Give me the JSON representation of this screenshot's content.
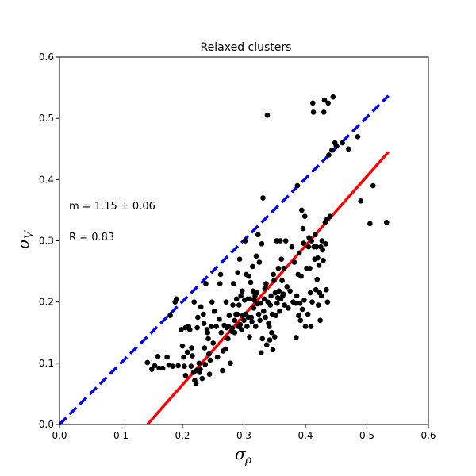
{
  "chart_data": {
    "type": "scatter",
    "title": "Relaxed clusters",
    "xlabel_symbol": "σ",
    "xlabel_subscript": "ρ",
    "ylabel_symbol": "σ",
    "ylabel_subscript": "V",
    "xlim": [
      0.0,
      0.6
    ],
    "ylim": [
      0.0,
      0.6
    ],
    "xticks": [
      "0.0",
      "0.1",
      "0.2",
      "0.3",
      "0.4",
      "0.5",
      "0.6"
    ],
    "yticks": [
      "0.0",
      "0.1",
      "0.2",
      "0.3",
      "0.4",
      "0.5",
      "0.6"
    ],
    "grid": false,
    "annotations": [
      "m = 1.15 ± 0.06",
      "R = 0.83"
    ],
    "colors": {
      "points": "#000000",
      "fit": "#ff0000",
      "one_to_one": "#0000ff"
    },
    "lines": [
      {
        "style": "dashed",
        "color": "#0000ff",
        "x": [
          0.0,
          0.535
        ],
        "y": [
          0.0,
          0.537
        ]
      },
      {
        "style": "solid",
        "color": "#ff0000",
        "x": [
          0.143,
          0.535
        ],
        "y": [
          0.0,
          0.445
        ]
      }
    ],
    "points": [
      [
        0.143,
        0.101
      ],
      [
        0.15,
        0.09
      ],
      [
        0.155,
        0.096
      ],
      [
        0.16,
        0.111
      ],
      [
        0.162,
        0.092
      ],
      [
        0.168,
        0.092
      ],
      [
        0.175,
        0.11
      ],
      [
        0.178,
        0.097
      ],
      [
        0.18,
        0.178
      ],
      [
        0.184,
        0.095
      ],
      [
        0.188,
        0.2
      ],
      [
        0.19,
        0.205
      ],
      [
        0.193,
        0.096
      ],
      [
        0.198,
        0.155
      ],
      [
        0.2,
        0.128
      ],
      [
        0.202,
        0.11
      ],
      [
        0.203,
        0.095
      ],
      [
        0.205,
        0.08
      ],
      [
        0.205,
        0.158
      ],
      [
        0.208,
        0.118
      ],
      [
        0.21,
        0.16
      ],
      [
        0.212,
        0.155
      ],
      [
        0.214,
        0.095
      ],
      [
        0.215,
        0.125
      ],
      [
        0.216,
        0.112
      ],
      [
        0.218,
        0.085
      ],
      [
        0.219,
        0.2
      ],
      [
        0.22,
        0.072
      ],
      [
        0.222,
        0.067
      ],
      [
        0.223,
        0.088
      ],
      [
        0.224,
        0.158
      ],
      [
        0.225,
        0.175
      ],
      [
        0.227,
        0.1
      ],
      [
        0.228,
        0.085
      ],
      [
        0.229,
        0.09
      ],
      [
        0.23,
        0.192
      ],
      [
        0.232,
        0.075
      ],
      [
        0.234,
        0.18
      ],
      [
        0.235,
        0.165
      ],
      [
        0.236,
        0.125
      ],
      [
        0.237,
        0.098
      ],
      [
        0.238,
        0.23
      ],
      [
        0.24,
        0.155
      ],
      [
        0.241,
        0.15
      ],
      [
        0.242,
        0.14
      ],
      [
        0.243,
        0.115
      ],
      [
        0.244,
        0.082
      ],
      [
        0.245,
        0.105
      ],
      [
        0.247,
        0.16
      ],
      [
        0.248,
        0.2
      ],
      [
        0.25,
        0.133
      ],
      [
        0.252,
        0.185
      ],
      [
        0.255,
        0.16
      ],
      [
        0.257,
        0.11
      ],
      [
        0.26,
        0.172
      ],
      [
        0.261,
        0.23
      ],
      [
        0.262,
        0.245
      ],
      [
        0.263,
        0.15
      ],
      [
        0.265,
        0.088
      ],
      [
        0.266,
        0.12
      ],
      [
        0.268,
        0.162
      ],
      [
        0.27,
        0.123
      ],
      [
        0.271,
        0.2
      ],
      [
        0.272,
        0.158
      ],
      [
        0.274,
        0.14
      ],
      [
        0.275,
        0.16
      ],
      [
        0.276,
        0.178
      ],
      [
        0.278,
        0.1
      ],
      [
        0.28,
        0.152
      ],
      [
        0.281,
        0.157
      ],
      [
        0.282,
        0.195
      ],
      [
        0.283,
        0.23
      ],
      [
        0.285,
        0.17
      ],
      [
        0.285,
        0.15
      ],
      [
        0.287,
        0.18
      ],
      [
        0.288,
        0.205
      ],
      [
        0.289,
        0.18
      ],
      [
        0.29,
        0.248
      ],
      [
        0.291,
        0.16
      ],
      [
        0.292,
        0.195
      ],
      [
        0.293,
        0.27
      ],
      [
        0.294,
        0.163
      ],
      [
        0.295,
        0.21
      ],
      [
        0.296,
        0.155
      ],
      [
        0.297,
        0.218
      ],
      [
        0.298,
        0.178
      ],
      [
        0.3,
        0.17
      ],
      [
        0.301,
        0.203
      ],
      [
        0.302,
        0.3
      ],
      [
        0.303,
        0.18
      ],
      [
        0.304,
        0.245
      ],
      [
        0.305,
        0.16
      ],
      [
        0.306,
        0.205
      ],
      [
        0.307,
        0.175
      ],
      [
        0.308,
        0.242
      ],
      [
        0.309,
        0.143
      ],
      [
        0.31,
        0.205
      ],
      [
        0.311,
        0.232
      ],
      [
        0.312,
        0.175
      ],
      [
        0.313,
        0.168
      ],
      [
        0.314,
        0.258
      ],
      [
        0.315,
        0.218
      ],
      [
        0.316,
        0.19
      ],
      [
        0.317,
        0.203
      ],
      [
        0.318,
        0.21
      ],
      [
        0.319,
        0.16
      ],
      [
        0.32,
        0.275
      ],
      [
        0.321,
        0.215
      ],
      [
        0.322,
        0.197
      ],
      [
        0.323,
        0.31
      ],
      [
        0.324,
        0.18
      ],
      [
        0.325,
        0.265
      ],
      [
        0.326,
        0.17
      ],
      [
        0.327,
        0.198
      ],
      [
        0.328,
        0.117
      ],
      [
        0.329,
        0.295
      ],
      [
        0.33,
        0.14
      ],
      [
        0.331,
        0.37
      ],
      [
        0.332,
        0.185
      ],
      [
        0.333,
        0.205
      ],
      [
        0.334,
        0.222
      ],
      [
        0.335,
        0.175
      ],
      [
        0.336,
        0.23
      ],
      [
        0.337,
        0.13
      ],
      [
        0.338,
        0.505
      ],
      [
        0.339,
        0.2
      ],
      [
        0.34,
        0.165
      ],
      [
        0.341,
        0.16
      ],
      [
        0.342,
        0.138
      ],
      [
        0.343,
        0.195
      ],
      [
        0.344,
        0.21
      ],
      [
        0.345,
        0.15
      ],
      [
        0.346,
        0.18
      ],
      [
        0.347,
        0.122
      ],
      [
        0.348,
        0.245
      ],
      [
        0.349,
        0.235
      ],
      [
        0.35,
        0.143
      ],
      [
        0.351,
        0.215
      ],
      [
        0.352,
        0.178
      ],
      [
        0.353,
        0.3
      ],
      [
        0.354,
        0.198
      ],
      [
        0.355,
        0.207
      ],
      [
        0.356,
        0.255
      ],
      [
        0.357,
        0.218
      ],
      [
        0.358,
        0.185
      ],
      [
        0.359,
        0.3
      ],
      [
        0.36,
        0.205
      ],
      [
        0.361,
        0.27
      ],
      [
        0.362,
        0.235
      ],
      [
        0.363,
        0.21
      ],
      [
        0.364,
        0.213
      ],
      [
        0.365,
        0.255
      ],
      [
        0.366,
        0.195
      ],
      [
        0.368,
        0.3
      ],
      [
        0.37,
        0.225
      ],
      [
        0.372,
        0.19
      ],
      [
        0.375,
        0.218
      ],
      [
        0.378,
        0.29
      ],
      [
        0.38,
        0.2
      ],
      [
        0.382,
        0.265
      ],
      [
        0.384,
        0.198
      ],
      [
        0.385,
        0.142
      ],
      [
        0.386,
        0.21
      ],
      [
        0.387,
        0.39
      ],
      [
        0.388,
        0.245
      ],
      [
        0.389,
        0.178
      ],
      [
        0.39,
        0.28
      ],
      [
        0.391,
        0.198
      ],
      [
        0.392,
        0.17
      ],
      [
        0.393,
        0.242
      ],
      [
        0.394,
        0.35
      ],
      [
        0.395,
        0.188
      ],
      [
        0.396,
        0.32
      ],
      [
        0.397,
        0.296
      ],
      [
        0.398,
        0.203
      ],
      [
        0.399,
        0.34
      ],
      [
        0.4,
        0.16
      ],
      [
        0.402,
        0.255
      ],
      [
        0.404,
        0.18
      ],
      [
        0.405,
        0.29
      ],
      [
        0.406,
        0.305
      ],
      [
        0.407,
        0.255
      ],
      [
        0.408,
        0.215
      ],
      [
        0.409,
        0.16
      ],
      [
        0.41,
        0.3
      ],
      [
        0.411,
        0.2
      ],
      [
        0.412,
        0.525
      ],
      [
        0.413,
        0.51
      ],
      [
        0.414,
        0.29
      ],
      [
        0.415,
        0.27
      ],
      [
        0.416,
        0.31
      ],
      [
        0.417,
        0.22
      ],
      [
        0.418,
        0.29
      ],
      [
        0.419,
        0.237
      ],
      [
        0.42,
        0.272
      ],
      [
        0.421,
        0.195
      ],
      [
        0.422,
        0.26
      ],
      [
        0.423,
        0.215
      ],
      [
        0.424,
        0.17
      ],
      [
        0.425,
        0.29
      ],
      [
        0.426,
        0.21
      ],
      [
        0.427,
        0.3
      ],
      [
        0.428,
        0.285
      ],
      [
        0.429,
        0.268
      ],
      [
        0.43,
        0.51
      ],
      [
        0.431,
        0.53
      ],
      [
        0.432,
        0.33
      ],
      [
        0.433,
        0.295
      ],
      [
        0.434,
        0.22
      ],
      [
        0.435,
        0.335
      ],
      [
        0.436,
        0.2
      ],
      [
        0.437,
        0.525
      ],
      [
        0.438,
        0.44
      ],
      [
        0.44,
        0.34
      ],
      [
        0.443,
        0.448
      ],
      [
        0.445,
        0.535
      ],
      [
        0.448,
        0.46
      ],
      [
        0.45,
        0.455
      ],
      [
        0.46,
        0.46
      ],
      [
        0.47,
        0.45
      ],
      [
        0.485,
        0.47
      ],
      [
        0.49,
        0.365
      ],
      [
        0.505,
        0.328
      ],
      [
        0.51,
        0.39
      ],
      [
        0.532,
        0.33
      ]
    ]
  }
}
